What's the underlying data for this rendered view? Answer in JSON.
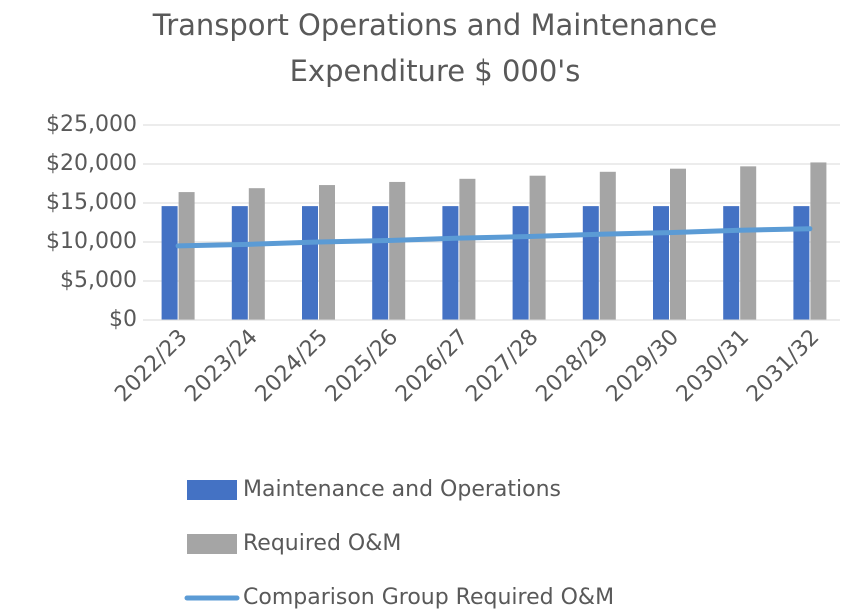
{
  "chart_data": {
    "type": "bar",
    "title": "Transport Operations and Maintenance Expenditure $ 000's",
    "categories": [
      "2022/23",
      "2023/24",
      "2024/25",
      "2025/26",
      "2026/27",
      "2027/28",
      "2028/29",
      "2029/30",
      "2030/31",
      "2031/32"
    ],
    "series": [
      {
        "name": "Maintenance and Operations",
        "type": "bar",
        "color": "#4472c4",
        "values": [
          14600,
          14600,
          14600,
          14600,
          14600,
          14600,
          14600,
          14600,
          14600,
          14600
        ]
      },
      {
        "name": "Required O&M",
        "type": "bar",
        "color": "#a5a5a5",
        "values": [
          16400,
          16900,
          17300,
          17700,
          18100,
          18500,
          19000,
          19400,
          19700,
          20200
        ]
      },
      {
        "name": "Comparison Group Required O&M",
        "type": "line",
        "color": "#5b9bd5",
        "values": [
          9500,
          9700,
          10000,
          10200,
          10500,
          10700,
          11000,
          11200,
          11500,
          11700
        ]
      }
    ],
    "ylim": [
      0,
      25000
    ],
    "yticks": [
      {
        "value": 0,
        "label": "$0"
      },
      {
        "value": 5000,
        "label": "$5,000"
      },
      {
        "value": 10000,
        "label": "$10,000"
      },
      {
        "value": 15000,
        "label": "$15,000"
      },
      {
        "value": 20000,
        "label": "$20,000"
      },
      {
        "value": 25000,
        "label": "$25,000"
      }
    ],
    "grid": true,
    "legend": "bottom"
  }
}
